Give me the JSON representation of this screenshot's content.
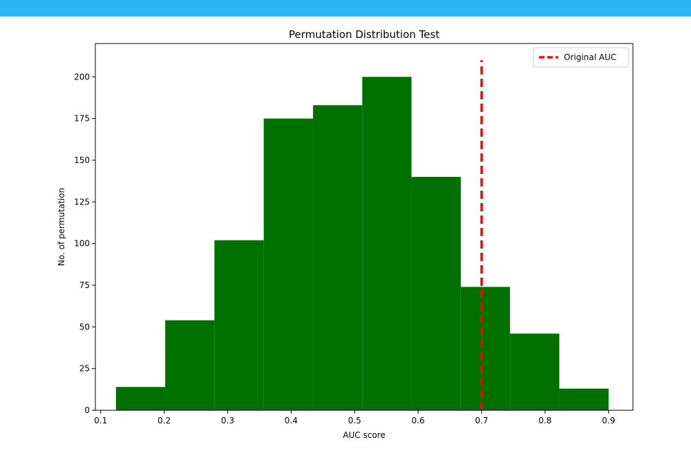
{
  "colors": {
    "top_bar": "#29b6f6",
    "bar_fill": "#007000",
    "reference_line": "#ff0000",
    "axis": "#000000"
  },
  "chart_data": {
    "type": "bar",
    "title": "Permutation Distribution Test",
    "xlabel": "AUC score",
    "ylabel": "No. of permutation",
    "xlim": [
      0.0916,
      0.9384
    ],
    "ylim": [
      0,
      220
    ],
    "x_ticks": [
      0.1,
      0.2,
      0.3,
      0.4,
      0.5,
      0.6,
      0.7,
      0.8,
      0.9
    ],
    "x_tick_labels": [
      "0.1",
      "0.2",
      "0.3",
      "0.4",
      "0.5",
      "0.6",
      "0.7",
      "0.8",
      "0.9"
    ],
    "y_ticks": [
      0,
      25,
      50,
      75,
      100,
      125,
      150,
      175,
      200
    ],
    "y_tick_labels": [
      "0",
      "25",
      "50",
      "75",
      "100",
      "125",
      "150",
      "175",
      "200"
    ],
    "bin_edges": [
      0.124,
      0.2016,
      0.2792,
      0.3568,
      0.4344,
      0.512,
      0.5896,
      0.6672,
      0.7448,
      0.8224,
      0.9
    ],
    "counts": [
      14,
      54,
      102,
      175,
      183,
      200,
      140,
      74,
      46,
      13
    ],
    "reference_line": {
      "x": 0.7,
      "y_range": [
        0,
        210
      ],
      "label": "Original AUC",
      "style": "dashed"
    },
    "legend": {
      "position": "top-right",
      "entries": [
        "Original AUC"
      ]
    },
    "grid": false
  }
}
